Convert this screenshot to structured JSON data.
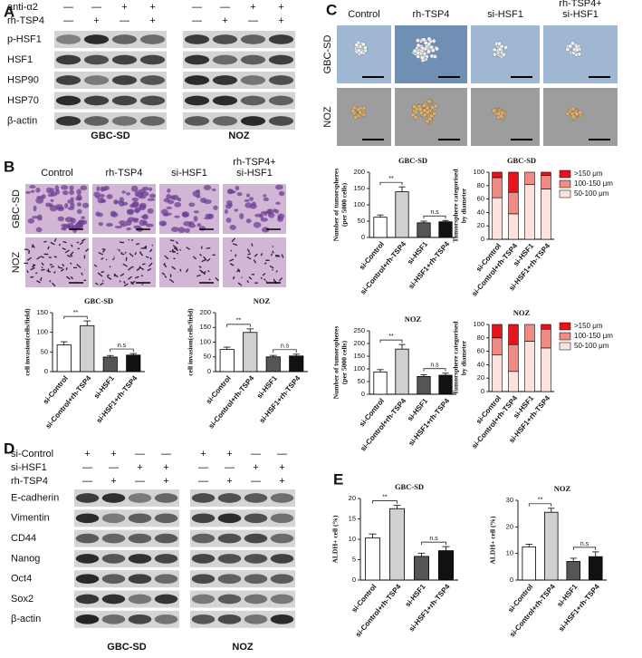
{
  "panel_a": {
    "label": "A",
    "treatments": [
      {
        "name": "anti-α2",
        "marks": [
          "—",
          "—",
          "+",
          "+",
          "—",
          "—",
          "+",
          "+"
        ]
      },
      {
        "name": "rh-TSP4",
        "marks": [
          "—",
          "+",
          "—",
          "+",
          "—",
          "+",
          "—",
          "+"
        ]
      }
    ],
    "proteins": [
      "p-HSF1",
      "HSF1",
      "HSP90",
      "HSP70",
      "β-actin"
    ],
    "cell_lines": [
      "GBC-SD",
      "NOZ"
    ]
  },
  "panel_b": {
    "label": "B",
    "columns": [
      [
        "Control"
      ],
      [
        "rh-TSP4"
      ],
      [
        "si-HSF1"
      ],
      [
        "rh-TSP4+",
        "si-HSF1"
      ]
    ],
    "rows": [
      "GBC-SD",
      "NOZ"
    ]
  },
  "panel_c": {
    "label": "C",
    "columns": [
      [
        "Control"
      ],
      [
        "rh-TSP4"
      ],
      [
        "si-HSF1"
      ],
      [
        "rh-TSP4+",
        "si-HSF1"
      ]
    ],
    "rows": [
      "GBC-SD",
      "NOZ"
    ]
  },
  "panel_d": {
    "label": "D",
    "treatments": [
      {
        "name": "si-Control",
        "marks": [
          "+",
          "+",
          "—",
          "—",
          "+",
          "+",
          "—",
          "—"
        ]
      },
      {
        "name": "si-HSF1",
        "marks": [
          "—",
          "—",
          "+",
          "+",
          "—",
          "—",
          "+",
          "+"
        ]
      },
      {
        "name": "rh-TSP4",
        "marks": [
          "—",
          "+",
          "—",
          "+",
          "—",
          "+",
          "—",
          "+"
        ]
      }
    ],
    "proteins": [
      "E-cadherin",
      "Vimentin",
      "CD44",
      "Nanog",
      "Oct4",
      "Sox2",
      "β-actin"
    ],
    "cell_lines": [
      "GBC-SD",
      "NOZ"
    ]
  },
  "panel_e": {
    "label": "E"
  },
  "chart_data": [
    {
      "type": "bar",
      "title": "GBC-SD",
      "ylabel": [
        "cell invasion(cells/field)"
      ],
      "categories": [
        "si-Control",
        "si-Control+rh-TSP4",
        "si-HSF1",
        "si-HSF1+rh-TSP4"
      ],
      "values": [
        68,
        117,
        37,
        42
      ],
      "errors": [
        8,
        12,
        4,
        4
      ],
      "colors": [
        "#ffffff",
        "#d0d0d0",
        "#555555",
        "#111111"
      ],
      "ylim": [
        0,
        150
      ],
      "yticks": [
        0,
        50,
        100,
        150
      ],
      "annotations": [
        "**",
        "n.s"
      ]
    },
    {
      "type": "bar",
      "title": "NOZ",
      "ylabel": [
        "cell invasion(cells/field)"
      ],
      "categories": [
        "si-Control",
        "si-Control+rh-TSP4",
        "si-HSF1",
        "si-HSF1+rh-TSP4"
      ],
      "values": [
        75,
        133,
        50,
        53
      ],
      "errors": [
        8,
        12,
        5,
        6
      ],
      "colors": [
        "#ffffff",
        "#d0d0d0",
        "#555555",
        "#111111"
      ],
      "ylim": [
        0,
        200
      ],
      "yticks": [
        0,
        50,
        100,
        150,
        200
      ],
      "annotations": [
        "**",
        "n.s"
      ]
    },
    {
      "type": "bar",
      "title": "GBC-SD",
      "ylabel": [
        "Number of tumorspheres",
        "(per 5000 cells)"
      ],
      "categories": [
        "si-Control",
        "si-Control+rh-TSP4",
        "si-HSF1",
        "si-HSF1+rh-TSP4"
      ],
      "values": [
        62,
        140,
        45,
        48
      ],
      "errors": [
        7,
        15,
        5,
        4
      ],
      "colors": [
        "#ffffff",
        "#d0d0d0",
        "#555555",
        "#111111"
      ],
      "ylim": [
        0,
        200
      ],
      "yticks": [
        0,
        50,
        100,
        150,
        200
      ],
      "annotations": [
        "**",
        "n.s"
      ]
    },
    {
      "type": "stacked_bar",
      "title": "GBC-SD",
      "ylabel": [
        "Tumorsphere categorised",
        "by diameter"
      ],
      "categories": [
        "si-Control",
        "si-Control+rh-TSP4",
        "si-HSF1",
        "si-HSF1+rh-TSP4"
      ],
      "series": [
        {
          "name": "50-100 μm",
          "color": "#fde3de",
          "values": [
            62,
            38,
            82,
            75
          ]
        },
        {
          "name": "100-150 μm",
          "color": "#f08a84",
          "values": [
            30,
            32,
            18,
            20
          ]
        },
        {
          "name": ">150 μm",
          "color": "#e8141b",
          "values": [
            8,
            30,
            0,
            5
          ]
        }
      ],
      "ylim": [
        0,
        100
      ],
      "yticks": [
        0,
        20,
        40,
        60,
        80,
        100
      ]
    },
    {
      "type": "bar",
      "title": "NOZ",
      "ylabel": [
        "Number of tumorspheres",
        "(per 5000 cells)"
      ],
      "categories": [
        "si-Control",
        "si-Control+rh-TSP4",
        "si-HSF1",
        "si-HSF1+rh-TSP4"
      ],
      "values": [
        88,
        178,
        70,
        75
      ],
      "errors": [
        9,
        18,
        7,
        8
      ],
      "colors": [
        "#ffffff",
        "#d0d0d0",
        "#555555",
        "#111111"
      ],
      "ylim": [
        0,
        250
      ],
      "yticks": [
        0,
        50,
        100,
        150,
        200,
        250
      ],
      "annotations": [
        "**",
        "n.s"
      ]
    },
    {
      "type": "stacked_bar",
      "title": "NOZ",
      "ylabel": [
        "Tumorsphere categorised",
        "by diameter"
      ],
      "categories": [
        "si-Control",
        "si-Control+rh-TSP4",
        "si-HSF1",
        "si-HSF1+rh-TSP4"
      ],
      "series": [
        {
          "name": "50-100 μm",
          "color": "#fde3de",
          "values": [
            55,
            30,
            75,
            65
          ]
        },
        {
          "name": "100-150 μm",
          "color": "#f08a84",
          "values": [
            25,
            40,
            25,
            28
          ]
        },
        {
          "name": ">150 μm",
          "color": "#e8141b",
          "values": [
            20,
            30,
            0,
            7
          ]
        }
      ],
      "ylim": [
        0,
        100
      ],
      "yticks": [
        0,
        20,
        40,
        60,
        80,
        100
      ]
    },
    {
      "type": "bar",
      "title": "GBC-SD",
      "ylabel": [
        "ALDH+ cell (%)"
      ],
      "categories": [
        "si-Control",
        "si-Control+rh-TSP4",
        "si-HSF1",
        "si-HSF1+rh-TSP4"
      ],
      "values": [
        10.3,
        17.5,
        5.8,
        7.2
      ],
      "errors": [
        1.0,
        0.8,
        0.8,
        1.0
      ],
      "colors": [
        "#ffffff",
        "#d0d0d0",
        "#555555",
        "#111111"
      ],
      "ylim": [
        0,
        20
      ],
      "yticks": [
        0,
        5,
        10,
        15,
        20
      ],
      "annotations": [
        "**",
        "n.s"
      ]
    },
    {
      "type": "bar",
      "title": "NOZ",
      "ylabel": [
        "ALDH+ cell (%)"
      ],
      "categories": [
        "si-Control",
        "si-Control+rh-TSP4",
        "si-HSF1",
        "si-HSF1+rh-TSP4"
      ],
      "values": [
        12.5,
        25.5,
        7,
        8.8
      ],
      "errors": [
        1.0,
        1.5,
        1.2,
        1.8
      ],
      "colors": [
        "#ffffff",
        "#d0d0d0",
        "#555555",
        "#111111"
      ],
      "ylim": [
        0,
        30
      ],
      "yticks": [
        0,
        10,
        20,
        30
      ],
      "annotations": [
        "**",
        "n.s"
      ]
    }
  ]
}
